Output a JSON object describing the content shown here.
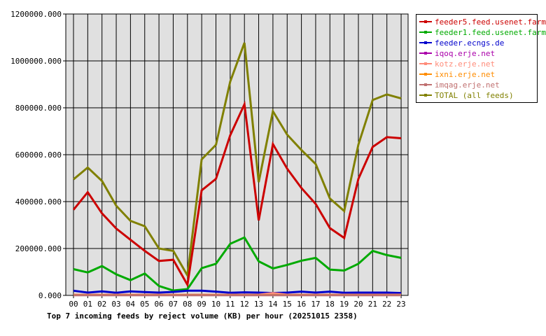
{
  "chart_data": {
    "type": "line",
    "title": "Top 7 incoming feeds by reject volume (KB) per hour (20251015 2358)",
    "xlabel": "",
    "ylabel": "",
    "categories": [
      "00",
      "01",
      "02",
      "03",
      "04",
      "05",
      "06",
      "07",
      "08",
      "09",
      "10",
      "11",
      "12",
      "13",
      "14",
      "15",
      "16",
      "17",
      "18",
      "19",
      "20",
      "21",
      "22",
      "23"
    ],
    "ylim": [
      0,
      1200000
    ],
    "yticks": [
      "0.000",
      "200000.000",
      "400000.000",
      "600000.000",
      "800000.000",
      "1000000.000",
      "1200000.000"
    ],
    "ytick_values": [
      0,
      200000,
      400000,
      600000,
      800000,
      1000000,
      1200000
    ],
    "grid": true,
    "legend_position": "right",
    "series": [
      {
        "name": "feeder5.feed.usenet.farm",
        "color": "#cc0000",
        "values": [
          365000,
          440000,
          350000,
          285000,
          237000,
          190000,
          147000,
          152000,
          45000,
          448000,
          497000,
          683000,
          815000,
          320000,
          645000,
          540000,
          458000,
          390000,
          287000,
          245000,
          497000,
          633000,
          675000,
          670000
        ]
      },
      {
        "name": "feeder1.feed.usenet.farm",
        "color": "#00aa00",
        "values": [
          112000,
          98000,
          125000,
          90000,
          65000,
          93000,
          40000,
          21000,
          27000,
          116000,
          135000,
          220000,
          247000,
          145000,
          115000,
          130000,
          148000,
          160000,
          110000,
          106000,
          135000,
          190000,
          172000,
          160000
        ]
      },
      {
        "name": "feeder.ecngs.de",
        "color": "#0000cc",
        "values": [
          20000,
          12000,
          17000,
          11000,
          17000,
          14000,
          12000,
          15000,
          20000,
          20000,
          16000,
          11000,
          13000,
          12000,
          10000,
          12000,
          16000,
          12000,
          16000,
          11000,
          12000,
          12000,
          12000,
          10000
        ]
      },
      {
        "name": "iqoq.erje.net",
        "color": "#aa00aa",
        "values": [
          2000,
          2000,
          2000,
          2000,
          2000,
          2000,
          2000,
          2000,
          2000,
          2000,
          2000,
          2000,
          2000,
          2000,
          2000,
          2000,
          2000,
          2000,
          2000,
          2000,
          2000,
          2000,
          2000,
          2000
        ]
      },
      {
        "name": "kotz.erje.net",
        "color": "#ff8c7a",
        "values": [
          3000,
          3000,
          3000,
          3000,
          3000,
          3000,
          3000,
          3000,
          3000,
          3000,
          3000,
          3000,
          3000,
          3000,
          10000,
          3000,
          3000,
          3000,
          3000,
          3000,
          3000,
          3000,
          3000,
          3000
        ]
      },
      {
        "name": "ixni.erje.net",
        "color": "#ff8c00",
        "values": [
          1500,
          1500,
          1500,
          1500,
          1500,
          1500,
          1500,
          1500,
          1500,
          1500,
          1500,
          1500,
          1500,
          1500,
          1500,
          1500,
          1500,
          1500,
          1500,
          1500,
          1500,
          1500,
          1500,
          1500
        ]
      },
      {
        "name": "imqag.erje.net",
        "color": "#c07070",
        "values": [
          1000,
          1000,
          1000,
          1000,
          1000,
          1000,
          1000,
          1000,
          1000,
          1000,
          1000,
          1000,
          1000,
          1000,
          1000,
          1000,
          1000,
          1000,
          1000,
          1000,
          1000,
          1000,
          1000,
          1000
        ]
      },
      {
        "name": "TOTAL (all feeds)",
        "color": "#808000",
        "values": [
          495000,
          545000,
          488000,
          382000,
          318000,
          295000,
          200000,
          190000,
          85000,
          580000,
          642000,
          912000,
          1077000,
          483000,
          785000,
          685000,
          620000,
          560000,
          413000,
          360000,
          643000,
          833000,
          857000,
          840000
        ]
      }
    ]
  }
}
